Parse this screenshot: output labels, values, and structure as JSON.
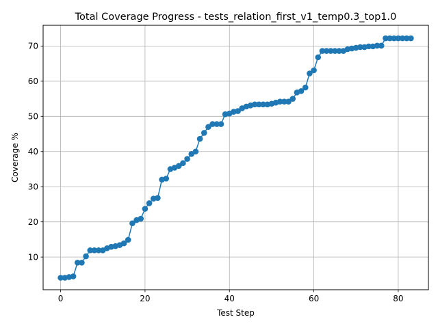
{
  "chart_data": {
    "type": "line",
    "title": "Total Coverage Progress - tests_relation_first_v1_temp0.3_top1.0",
    "xlabel": "Test Step",
    "ylabel": "Coverage %",
    "xlim": [
      -4.15,
      87.15
    ],
    "ylim": [
      0.7,
      75.9
    ],
    "xticks": [
      0,
      20,
      40,
      60,
      80
    ],
    "yticks": [
      10,
      20,
      30,
      40,
      50,
      60,
      70
    ],
    "grid": true,
    "line_color": "#1f77b4",
    "marker": "circle",
    "series": [
      {
        "x": [
          0,
          1,
          2,
          3,
          4,
          5,
          6,
          7,
          8,
          9,
          10,
          11,
          12,
          13,
          14,
          15,
          16,
          17,
          18,
          19,
          20,
          21,
          22,
          23,
          24,
          25,
          26,
          27,
          28,
          29,
          30,
          31,
          32,
          33,
          34,
          35,
          36,
          37,
          38,
          39,
          40,
          41,
          42,
          43,
          44,
          45,
          46,
          47,
          48,
          49,
          50,
          51,
          52,
          53,
          54,
          55,
          56,
          57,
          58,
          59,
          60,
          61,
          62,
          63,
          64,
          65,
          66,
          67,
          68,
          69,
          70,
          71,
          72,
          73,
          74,
          75,
          76,
          77,
          78,
          79,
          80,
          81,
          82,
          83
        ],
        "y": [
          4.1,
          4.1,
          4.3,
          4.5,
          8.4,
          8.4,
          10.2,
          11.9,
          11.9,
          11.9,
          11.9,
          12.5,
          12.9,
          13.1,
          13.4,
          13.9,
          14.9,
          19.6,
          20.5,
          20.9,
          23.7,
          25.3,
          26.6,
          26.8,
          32.0,
          32.3,
          35.0,
          35.4,
          35.9,
          36.7,
          37.9,
          39.3,
          40.0,
          43.6,
          45.3,
          47.0,
          47.8,
          47.8,
          47.8,
          50.6,
          50.8,
          51.3,
          51.5,
          52.3,
          52.8,
          53.1,
          53.4,
          53.4,
          53.4,
          53.4,
          53.6,
          53.9,
          54.2,
          54.2,
          54.2,
          55.0,
          56.8,
          57.2,
          58.2,
          62.2,
          63.1,
          66.8,
          68.6,
          68.6,
          68.6,
          68.6,
          68.6,
          68.6,
          69.1,
          69.3,
          69.5,
          69.7,
          69.7,
          69.9,
          69.9,
          70.1,
          70.1,
          72.2,
          72.2,
          72.2,
          72.2,
          72.2,
          72.2,
          72.2
        ]
      }
    ]
  }
}
